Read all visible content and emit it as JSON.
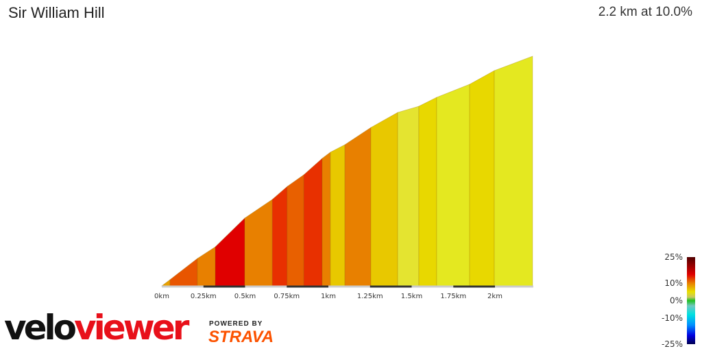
{
  "header": {
    "title": "Sir William Hill",
    "summary": "2.2 km at 10.0%"
  },
  "chart_data": {
    "type": "area",
    "xlabel": "",
    "ylabel": "",
    "x_ticks": [
      "0km",
      "0.25km",
      "0.5km",
      "0.75km",
      "1km",
      "1.25km",
      "1.5km",
      "1.75km",
      "2km"
    ],
    "x_tick_values": [
      0,
      0.25,
      0.5,
      0.75,
      1,
      1.25,
      1.5,
      1.75,
      2
    ],
    "xlim": [
      0,
      2.23
    ],
    "distance_km": [
      0,
      0.049,
      0.214,
      0.321,
      0.498,
      0.663,
      0.753,
      0.852,
      0.963,
      1.012,
      1.099,
      1.255,
      1.416,
      1.543,
      1.65,
      1.848,
      1.996,
      2.226
    ],
    "elevation_gain_m": [
      0,
      5.9,
      26.3,
      37.4,
      65.0,
      82.8,
      95.3,
      106.4,
      122.2,
      128.1,
      135.3,
      151.8,
      166.2,
      172.1,
      180.7,
      193.2,
      206.3,
      220.1
    ],
    "segment_colors": [
      "#e8a000",
      "#e85500",
      "#e88000",
      "#e00000",
      "#e88000",
      "#e83000",
      "#e86000",
      "#e83000",
      "#e88000",
      "#e8c800",
      "#e88000",
      "#e8c800",
      "#e4e430",
      "#e8d800",
      "#e4e820",
      "#e8d800",
      "#e4e820"
    ],
    "grade_legend": {
      "labels": [
        "25%",
        "10%",
        "0%",
        "-10%",
        "-25%"
      ],
      "values": [
        25,
        10,
        0,
        -10,
        -25
      ],
      "stops": [
        [
          "25",
          "#500000"
        ],
        [
          "15",
          "#e00000"
        ],
        [
          "10",
          "#e88000"
        ],
        [
          "5",
          "#e8e000"
        ],
        [
          "2",
          "#c8c860"
        ],
        [
          "0",
          "#20c020"
        ],
        [
          "-3",
          "#70c8c0"
        ],
        [
          "-8",
          "#00e0e0"
        ],
        [
          "-14",
          "#0090ff"
        ],
        [
          "-20",
          "#0000e0"
        ],
        [
          "-25",
          "#000050"
        ]
      ]
    }
  },
  "branding": {
    "logo_part1": "velo",
    "logo_part2": "viewer",
    "powered_by": "POWERED BY",
    "strava": "STRAVA"
  }
}
